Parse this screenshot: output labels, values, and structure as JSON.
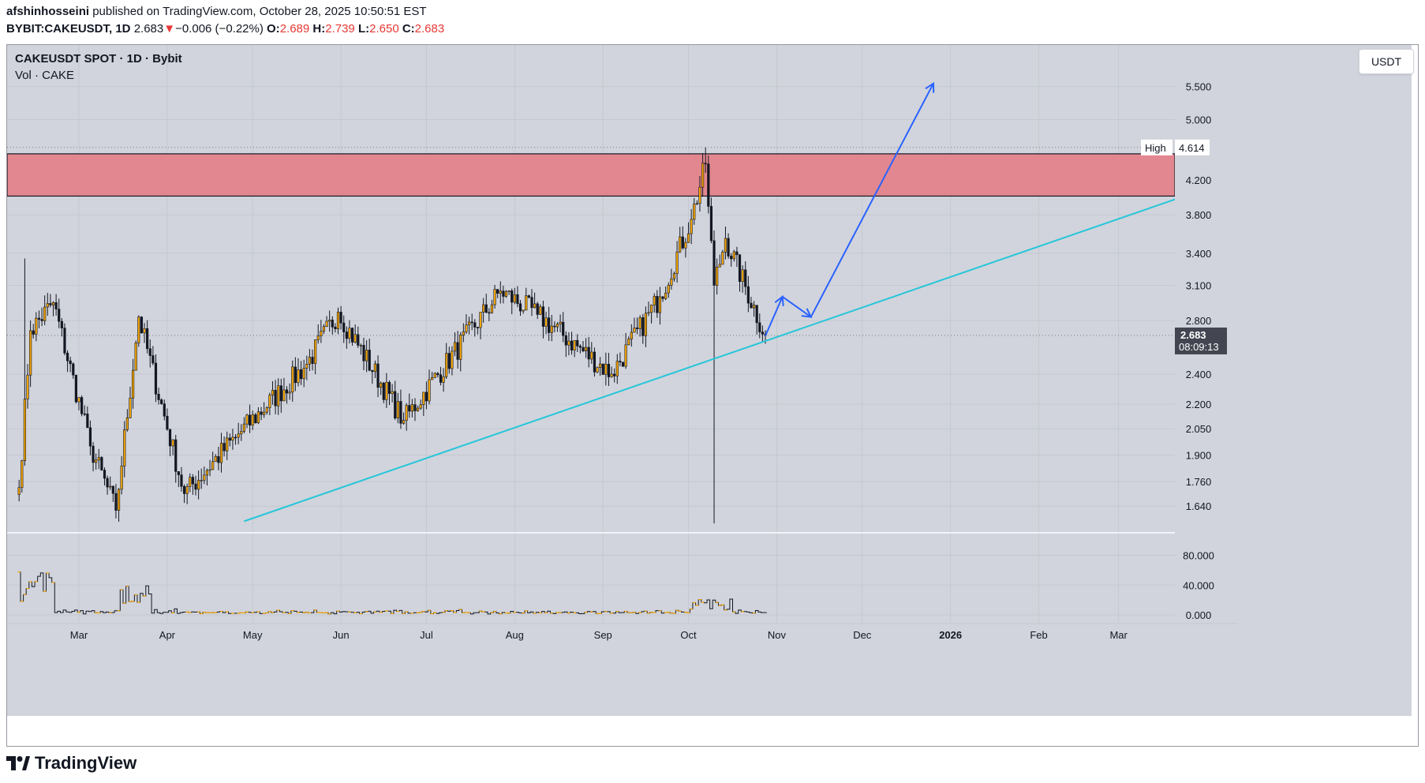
{
  "header": {
    "author": "afshinhosseini",
    "published_text": "published on TradingView.com, October 28, 2025 10:50:51 EST",
    "symbol": "BYBIT:CAKEUSDT, 1D",
    "last": "2.683",
    "change_arrow": "▼",
    "change": "−0.006 (−0.22%)",
    "o_label": "O:",
    "o_value": "2.689",
    "h_label": "H:",
    "h_value": "2.739",
    "l_label": "L:",
    "l_value": "2.650",
    "c_label": "C:",
    "c_value": "2.683"
  },
  "legend": {
    "title": "CAKEUSDT SPOT · 1D · Bybit",
    "volume_label": "Vol · CAKE"
  },
  "currency_button": "USDT",
  "brand": "TradingView",
  "colors": {
    "plot_bg": "#d1d4dc",
    "zone_fill": "#e2878f",
    "trendline": "#26c6da",
    "projection": "#2962ff",
    "candle_up": "#f7a600",
    "candle_down": "#131722",
    "label_bg": "#434651"
  },
  "chart_data": {
    "type": "candlestick",
    "title": "CAKEUSDT SPOT · 1D · Bybit",
    "scale": "log",
    "price_ticks": [
      "5.500",
      "5.000",
      "4.200",
      "3.800",
      "3.400",
      "3.100",
      "2.800",
      "2.400",
      "2.200",
      "2.050",
      "1.900",
      "1.760",
      "1.640"
    ],
    "volume_ticks": [
      "80.000",
      "40.000",
      "0.000"
    ],
    "time_labels": [
      "Mar",
      "Apr",
      "May",
      "Jun",
      "Jul",
      "Aug",
      "Sep",
      "Oct",
      "Nov",
      "Dec",
      "2026",
      "Feb",
      "Mar"
    ],
    "high_label": "High",
    "high_value": "4.614",
    "last_price": "2.683",
    "countdown": "08:09:13",
    "resistance_zone": {
      "from": 4.01,
      "to": 4.53
    },
    "trendline": {
      "start": {
        "date": "2025-04-28",
        "price": 1.57
      },
      "end": {
        "date": "2026-03-25",
        "price": 4.02
      }
    },
    "projection_path": [
      {
        "date": "2025-10-28",
        "price": 2.68
      },
      {
        "date": "2025-11-03",
        "price": 3.0
      },
      {
        "date": "2025-11-13",
        "price": 2.83
      },
      {
        "date": "2025-12-26",
        "price": 5.55
      }
    ],
    "price_key_points": [
      {
        "date": "2025-02-08",
        "close": 1.73
      },
      {
        "date": "2025-02-12",
        "close": 2.72
      },
      {
        "date": "2025-02-20",
        "close": 2.95
      },
      {
        "date": "2025-03-05",
        "close": 1.95
      },
      {
        "date": "2025-03-14",
        "close": 1.62
      },
      {
        "date": "2025-03-22",
        "close": 2.83
      },
      {
        "date": "2025-04-07",
        "close": 1.7
      },
      {
        "date": "2025-04-25",
        "close": 2.0
      },
      {
        "date": "2025-05-20",
        "close": 2.47
      },
      {
        "date": "2025-05-31",
        "close": 2.87
      },
      {
        "date": "2025-06-23",
        "close": 2.1
      },
      {
        "date": "2025-07-27",
        "close": 3.05
      },
      {
        "date": "2025-08-09",
        "close": 2.85
      },
      {
        "date": "2025-09-04",
        "close": 2.4
      },
      {
        "date": "2025-09-21",
        "close": 3.0
      },
      {
        "date": "2025-10-02",
        "close": 3.75
      },
      {
        "date": "2025-10-07",
        "close": 4.4
      },
      {
        "date": "2025-10-10",
        "close": 3.1
      },
      {
        "date": "2025-10-14",
        "close": 3.55
      },
      {
        "date": "2025-10-28",
        "close": 2.683
      }
    ]
  }
}
